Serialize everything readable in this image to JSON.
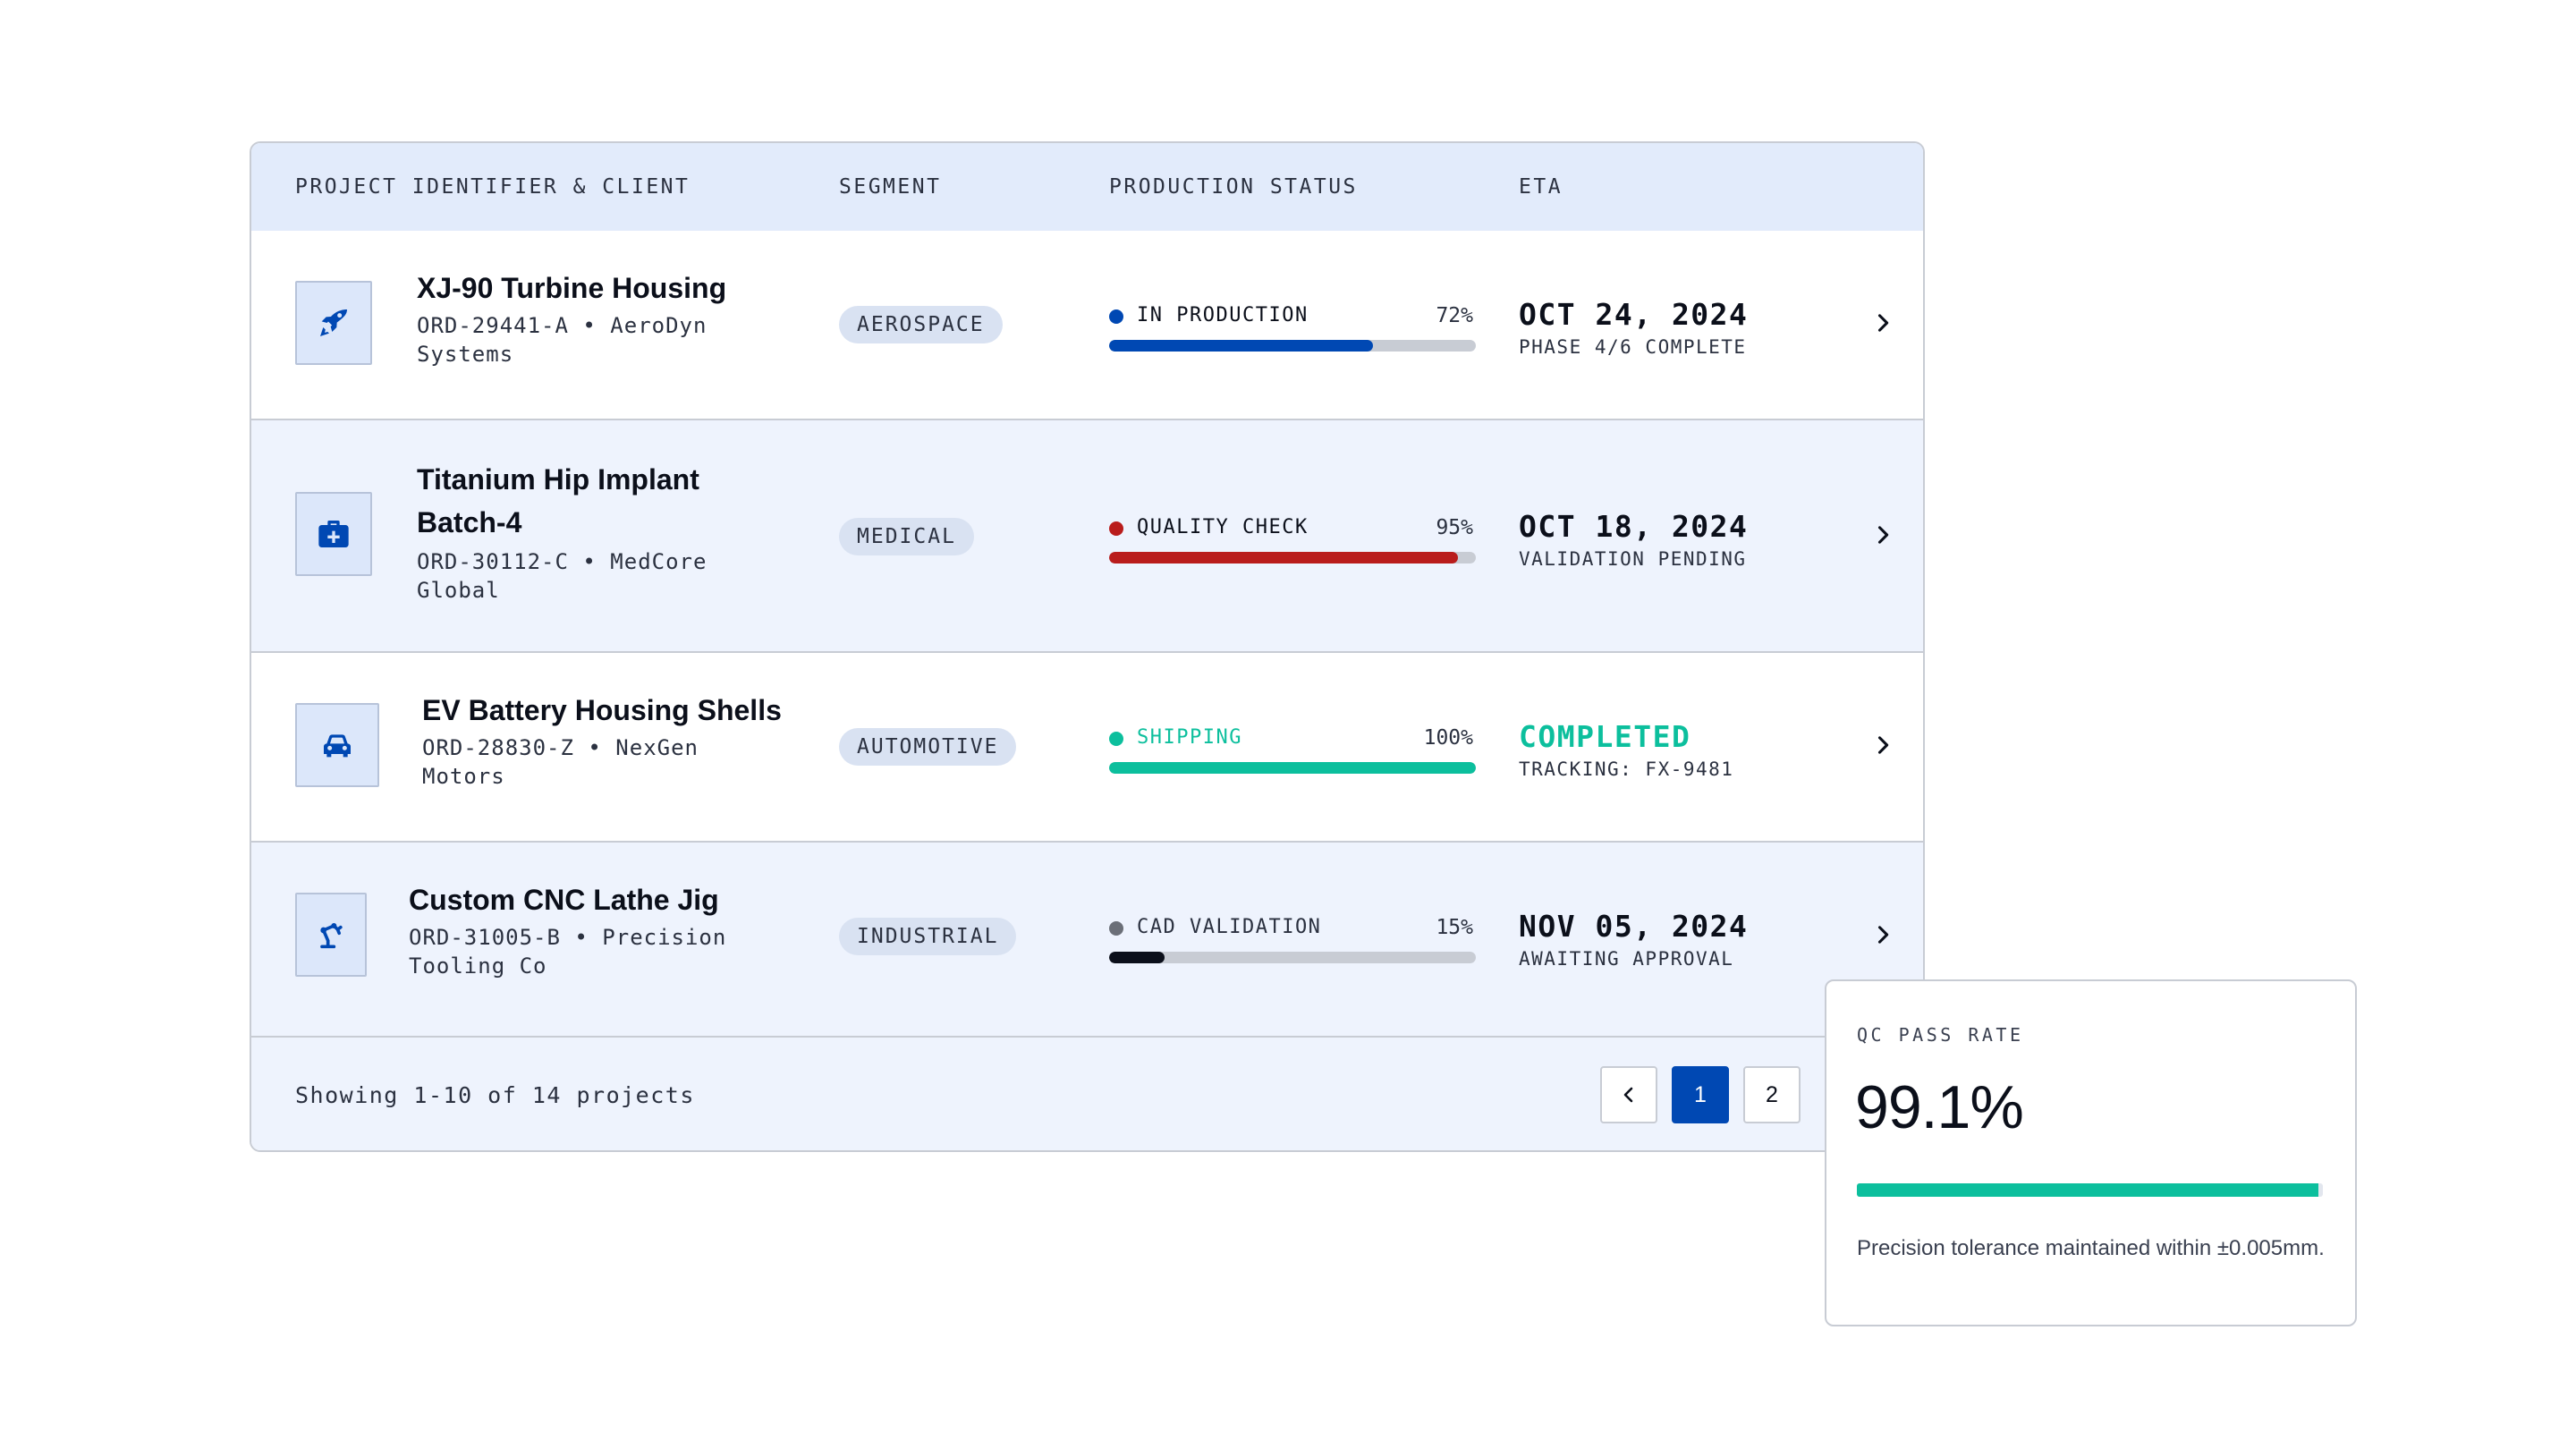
{
  "table": {
    "headers": {
      "project": "PROJECT IDENTIFIER & CLIENT",
      "segment": "SEGMENT",
      "status": "PRODUCTION STATUS",
      "eta": "ETA"
    },
    "rows": [
      {
        "icon": "rocket-icon",
        "name": "XJ-90 Turbine Housing",
        "meta": "ORD-29441-A • AeroDyn\nSystems",
        "segment": "AEROSPACE",
        "status_label": "IN PRODUCTION",
        "status_color": "#0048b3",
        "progress_pct": "72%",
        "progress": 0.72,
        "eta_main": "OCT 24, 2024",
        "eta_sub": "PHASE 4/6 COMPLETE"
      },
      {
        "icon": "medical-kit-icon",
        "name": "Titanium Hip Implant\nBatch-4",
        "meta": "ORD-30112-C • MedCore\nGlobal",
        "segment": "MEDICAL",
        "status_label": "QUALITY CHECK",
        "status_color": "#b91c1c",
        "progress_pct": "95%",
        "progress": 0.95,
        "eta_main": "OCT 18, 2024",
        "eta_sub": "VALIDATION PENDING"
      },
      {
        "icon": "car-icon",
        "name": "EV Battery Housing Shells",
        "meta": "ORD-28830-Z • NexGen\nMotors",
        "segment": "AUTOMOTIVE",
        "status_label": "SHIPPING",
        "status_color": "#0cbf9d",
        "progress_pct": "100%",
        "progress": 1.0,
        "eta_main": "COMPLETED",
        "eta_sub": "TRACKING: FX-9481"
      },
      {
        "icon": "robotic-arm-icon",
        "name": "Custom CNC Lathe Jig",
        "meta": "ORD-31005-B • Precision\nTooling Co",
        "segment": "INDUSTRIAL",
        "status_label": "CAD VALIDATION",
        "status_color": "#6b6f78",
        "progress_pct": "15%",
        "progress": 0.15,
        "eta_main": "NOV 05, 2024",
        "eta_sub": "AWAITING APPROVAL"
      }
    ],
    "footer": {
      "showing": "Showing 1-10 of 14 projects",
      "pages": [
        "1",
        "2"
      ],
      "current_page": "1"
    }
  },
  "qc": {
    "label": "QC PASS RATE",
    "value": "99.1%",
    "rate": 0.991,
    "description": "Precision tolerance maintained within ±0.005mm."
  },
  "colors": {
    "accent": "#0048b3",
    "success": "#0cbf9d",
    "danger": "#b91c1c",
    "neutral": "#6b6f78",
    "completed_text": "#0cbf9d"
  }
}
